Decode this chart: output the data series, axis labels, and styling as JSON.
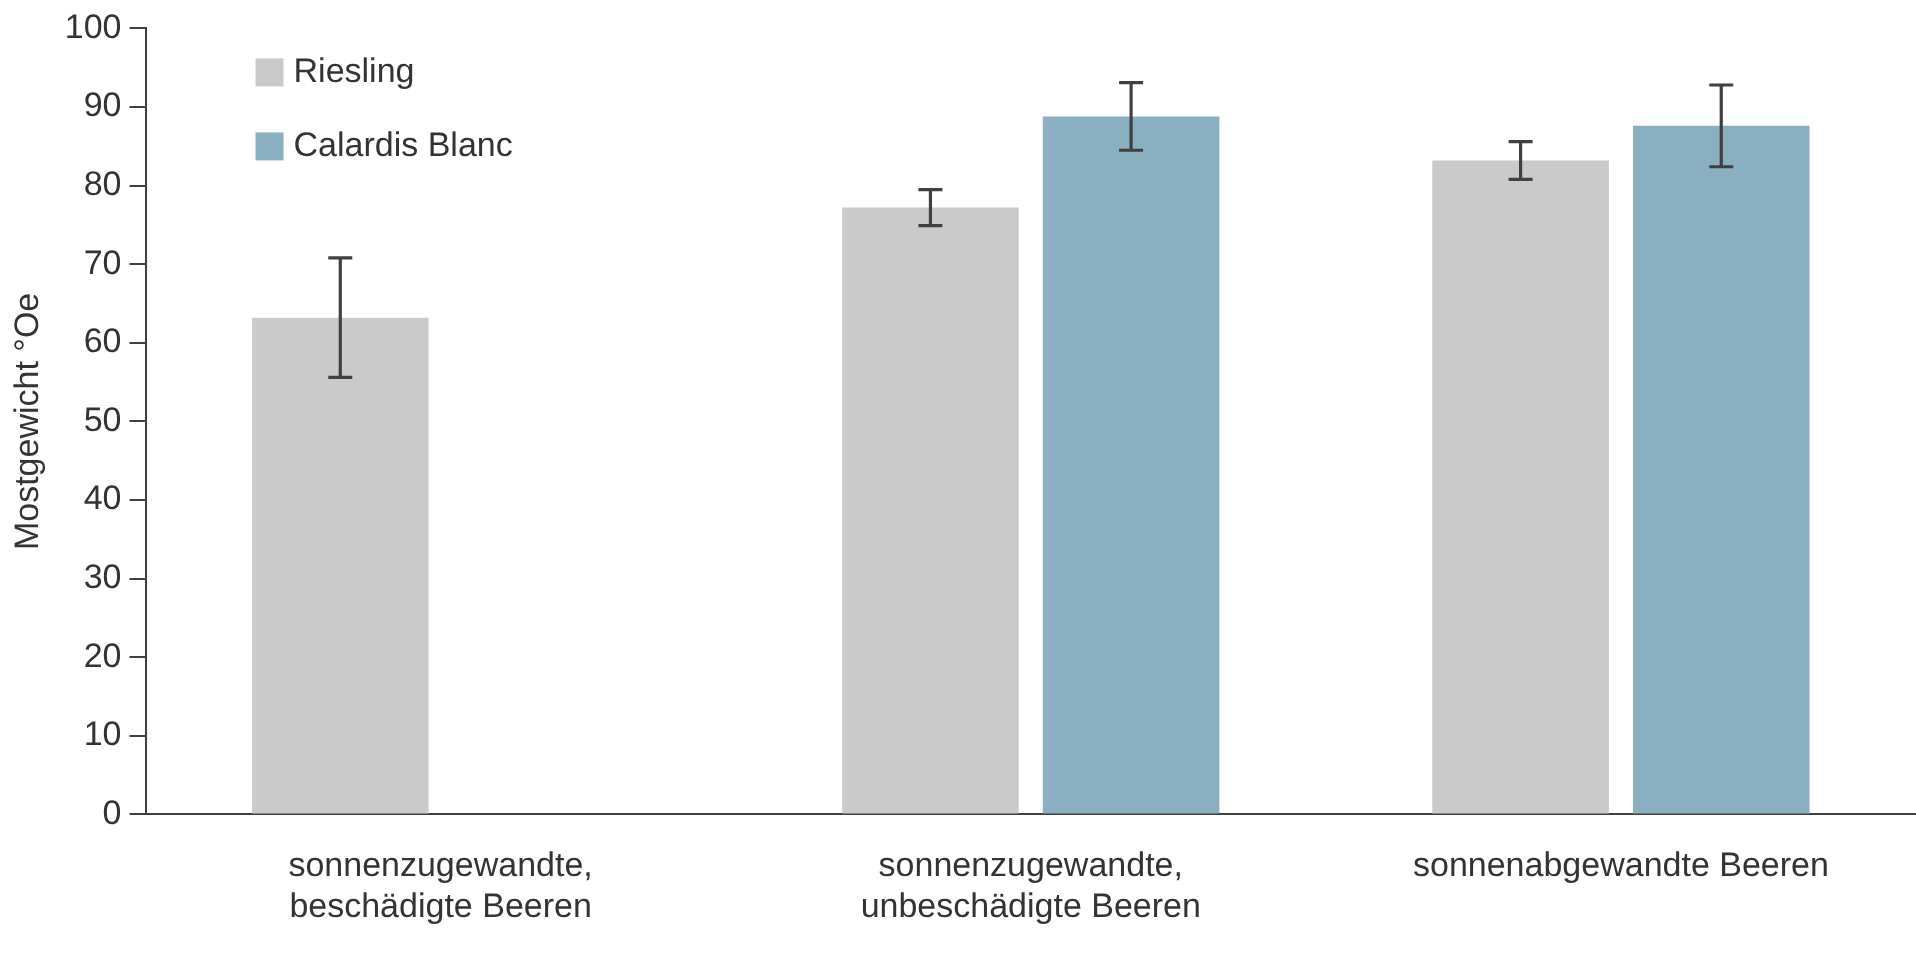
{
  "chart_data": {
    "type": "bar",
    "ylabel": "Mostgewicht °Oe",
    "categories": [
      "sonnenzugewandte, beschädigte Beeren",
      "sonnenzugewandte, unbeschädigte Beeren",
      "sonnenabgewandte Beeren"
    ],
    "series": [
      {
        "name": "Riesling",
        "color": "#c9cac9",
        "values": [
          63.2,
          77.2,
          83.2
        ],
        "errors": [
          7.6,
          2.3,
          2.4
        ]
      },
      {
        "name": "Calardis Blanc",
        "color": "#8aafc0",
        "values": [
          null,
          88.8,
          87.6
        ],
        "errors": [
          null,
          4.3,
          5.2
        ]
      }
    ],
    "ylim": [
      0,
      100
    ],
    "yticks": [
      0,
      10,
      20,
      30,
      40,
      50,
      60,
      70,
      80,
      90,
      100
    ],
    "grid": false,
    "legend": "top left"
  }
}
